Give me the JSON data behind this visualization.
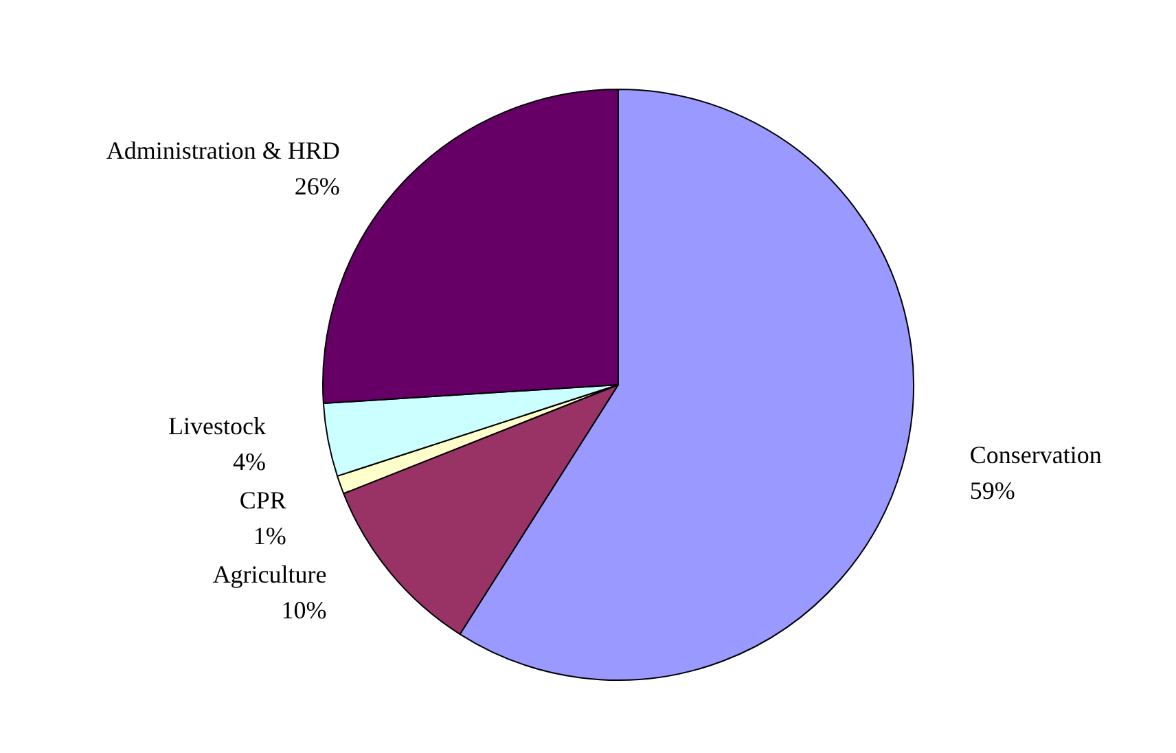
{
  "chart_data": {
    "type": "pie",
    "categories": [
      "Conservation",
      "Agriculture",
      "CPR",
      "Livestock",
      "Administration & HRD"
    ],
    "values": [
      59,
      10,
      1,
      4,
      26
    ],
    "value_labels": [
      "59%",
      "10%",
      "1%",
      "4%",
      "26%"
    ],
    "colors": [
      "#9999ff",
      "#993366",
      "#ffffcc",
      "#ccffff",
      "#660066"
    ],
    "legend": false
  }
}
